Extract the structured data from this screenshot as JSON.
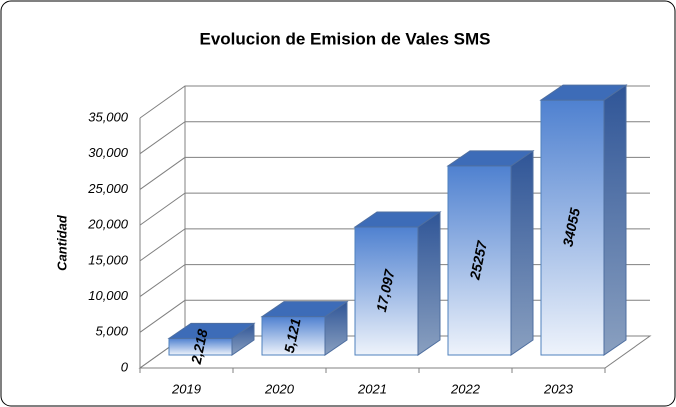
{
  "chart_data": {
    "type": "bar3d",
    "title": "Evolucion de Emision de Vales SMS",
    "y_label": "Cantidad",
    "categories": [
      "2019",
      "2020",
      "2021",
      "2022",
      "2023"
    ],
    "values": [
      2218,
      5121,
      17097,
      25257,
      34055
    ],
    "value_labels": [
      "2,218",
      "5,121",
      "17,097",
      "25257",
      "34055"
    ],
    "color": "#4f81d0",
    "ylim": [
      0,
      35000
    ],
    "yticks": [
      0,
      {
        "value": 5000,
        "label": "5,000"
      },
      {
        "value": 10000,
        "label": "10,000"
      },
      {
        "value": 15000,
        "label": "15,000"
      },
      {
        "value": 20000,
        "label": "20,000"
      },
      {
        "value": 25000,
        "label": "25,000"
      },
      {
        "value": 30000,
        "label": "30,000"
      },
      {
        "value": 35000,
        "label": "35,000"
      }
    ],
    "grid": true
  }
}
